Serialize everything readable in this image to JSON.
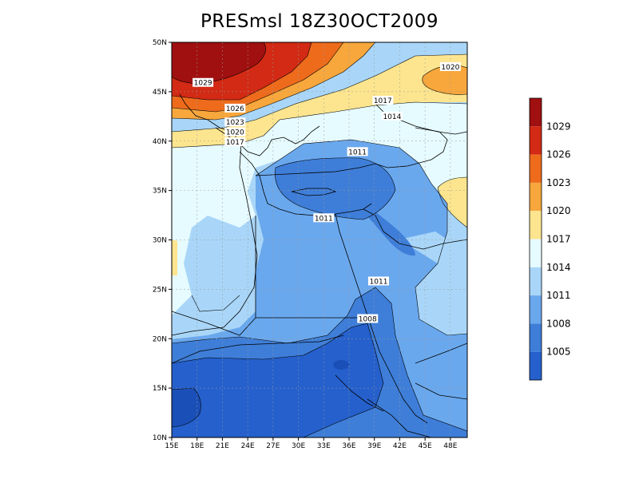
{
  "title": "PRESmsl  18Z30OCT2009",
  "map": {
    "lon_range": [
      15,
      50
    ],
    "lat_range": [
      10,
      50
    ],
    "x_tick_labels": [
      "15E",
      "18E",
      "21E",
      "24E",
      "27E",
      "30E",
      "33E",
      "36E",
      "39E",
      "42E",
      "45E",
      "48E"
    ],
    "y_tick_labels": [
      "10N",
      "15N",
      "20N",
      "25N",
      "30N",
      "35N",
      "40N",
      "45N",
      "50N"
    ],
    "gridlines": "dashed",
    "contour_labels": [
      {
        "text": "1029",
        "lon": 18.7,
        "lat": 45.9
      },
      {
        "text": "1026",
        "lon": 22.5,
        "lat": 43.3
      },
      {
        "text": "1023",
        "lon": 22.5,
        "lat": 41.9
      },
      {
        "text": "1020",
        "lon": 22.5,
        "lat": 40.9
      },
      {
        "text": "1017",
        "lon": 22.5,
        "lat": 39.9
      },
      {
        "text": "1017",
        "lon": 40.0,
        "lat": 44.1
      },
      {
        "text": "1014",
        "lon": 41.1,
        "lat": 42.5
      },
      {
        "text": "1020",
        "lon": 48.0,
        "lat": 47.5
      },
      {
        "text": "1011",
        "lon": 37.0,
        "lat": 38.9
      },
      {
        "text": "1011",
        "lon": 33.0,
        "lat": 32.2
      },
      {
        "text": "1011",
        "lon": 39.5,
        "lat": 25.8
      },
      {
        "text": "1008",
        "lon": 38.2,
        "lat": 22.0
      }
    ]
  },
  "colorbar": {
    "levels": [
      "1029",
      "1026",
      "1023",
      "1020",
      "1017",
      "1014",
      "1011",
      "1008",
      "1005"
    ],
    "colors": [
      "#a01010",
      "#d22a14",
      "#ee6b1c",
      "#f7a73c",
      "#fde58f",
      "#e6fbff",
      "#a9d6f8",
      "#6aa8ee",
      "#3e7ed8",
      "#2560cc"
    ]
  },
  "fill_colors": {
    "c1005": "#2560cc",
    "c1008": "#3e7ed8",
    "c1011": "#6aa8ee",
    "c1014": "#a9d6f8",
    "c1017": "#e6fbff",
    "c1020": "#fde58f",
    "c1023": "#f7a73c",
    "c1026": "#ee6b1c",
    "c1029": "#d22a14",
    "c1032": "#a01010"
  }
}
